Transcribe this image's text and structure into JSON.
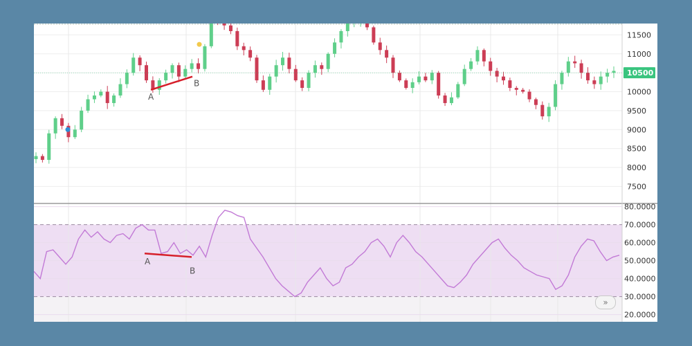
{
  "chart_data": [
    {
      "type": "candlestick",
      "title": "",
      "y_ticks": [
        11500,
        11000,
        10500,
        10000,
        9500,
        9000,
        8500,
        8000,
        7500
      ],
      "ylim": [
        7050,
        11800
      ],
      "current_price": 10500,
      "current_price_label": "10500",
      "colors": {
        "up": "#5fcf8a",
        "down": "#cc3d55",
        "badge": "#39c47e"
      },
      "ohlc_path": [
        8300,
        8200,
        8900,
        9300,
        9100,
        8800,
        9000,
        9500,
        9800,
        9900,
        10000,
        9700,
        9900,
        10200,
        10500,
        10900,
        10700,
        10300,
        10050,
        10300,
        10500,
        10700,
        10400,
        10600,
        10750,
        10600,
        11200,
        11900,
        11850,
        11750,
        11600,
        11200,
        11100,
        10900,
        10300,
        10050,
        10400,
        10700,
        10900,
        10600,
        10300,
        10100,
        10500,
        10700,
        10600,
        11000,
        11300,
        11600,
        11800,
        11850,
        11900,
        11700,
        11300,
        11100,
        10900,
        10500,
        10300,
        10100,
        10250,
        10400,
        10300,
        10500,
        9900,
        9700,
        9850,
        10200,
        10600,
        10800,
        11100,
        10800,
        10550,
        10400,
        10300,
        10100,
        10050,
        10000,
        9800,
        9650,
        9350,
        9600,
        10200,
        10500,
        10800,
        10750,
        10500,
        10300,
        10200,
        10400,
        10500,
        10550
      ],
      "annotations": [
        {
          "label": "A",
          "value": 10050
        },
        {
          "label": "B",
          "value": 10400
        }
      ],
      "markers": [
        {
          "color": "#2f8fd6",
          "value": 9000
        },
        {
          "color": "#f2c94c",
          "value": 11250
        }
      ]
    },
    {
      "type": "line",
      "title": "",
      "y_ticks_labels": [
        "80.0000",
        "70.0000",
        "60.0000",
        "50.0000",
        "40.0000",
        "30.0000",
        "20.0000"
      ],
      "y_ticks": [
        80,
        70,
        60,
        50,
        40,
        30,
        20
      ],
      "ylim": [
        16,
        81
      ],
      "band": [
        30,
        70
      ],
      "line_color": "#c27ad6",
      "band_color": "#eedef3",
      "values": [
        44,
        40,
        55,
        56,
        52,
        48,
        52,
        62,
        67,
        63,
        66,
        62,
        60,
        64,
        65,
        62,
        68,
        70,
        67,
        67,
        54,
        55,
        60,
        54,
        56,
        53,
        58,
        52,
        64,
        74,
        78,
        77,
        75,
        74,
        62,
        57,
        52,
        46,
        40,
        36,
        33,
        30,
        32,
        38,
        42,
        46,
        40,
        36,
        38,
        46,
        48,
        52,
        55,
        60,
        62,
        58,
        52,
        60,
        64,
        60,
        55,
        52,
        48,
        44,
        40,
        36,
        35,
        38,
        42,
        48,
        52,
        56,
        60,
        62,
        57,
        53,
        50,
        46,
        44,
        42,
        41,
        40,
        34,
        36,
        42,
        52,
        58,
        62,
        61,
        55,
        50,
        52,
        53
      ],
      "annotations": [
        {
          "label": "A",
          "value": 54
        },
        {
          "label": "B",
          "value": 52
        }
      ]
    }
  ],
  "ui": {
    "scroll_button_label": "»"
  }
}
